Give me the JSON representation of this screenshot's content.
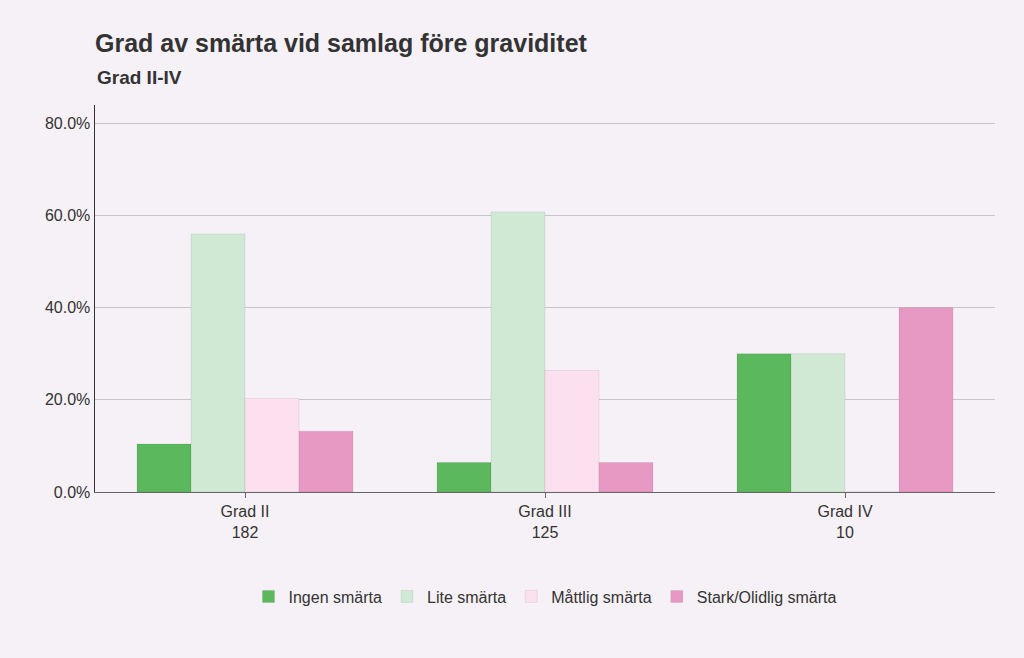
{
  "chart_data": {
    "type": "bar",
    "title": "Grad av smärta vid samlag före graviditet",
    "subtitle": "Grad II-IV",
    "categories": [
      "Grad II\n182",
      "Grad III\n125",
      "Grad IV\n10"
    ],
    "series": [
      {
        "name": "Ingen smärta",
        "color": "#5cb85c",
        "values": [
          10.4,
          6.4,
          30.0
        ]
      },
      {
        "name": "Lite smärta",
        "color": "#d0e9d4",
        "values": [
          56.0,
          60.8,
          30.0
        ]
      },
      {
        "name": "Måttlig smärta",
        "color": "#fde0ef",
        "values": [
          20.3,
          26.4,
          0
        ]
      },
      {
        "name": "Stark/Olidlig smärta",
        "color": "#e899c3",
        "values": [
          13.2,
          6.4,
          40.0
        ]
      }
    ],
    "ylim": [
      0,
      84
    ],
    "yticks": [
      {
        "value": 0,
        "label": "0.0%"
      },
      {
        "value": 20,
        "label": "20.0%"
      },
      {
        "value": 40,
        "label": "40.0%"
      },
      {
        "value": 60,
        "label": "60.0%"
      },
      {
        "value": 80,
        "label": "80.0%"
      }
    ],
    "grid": true,
    "legend": "bottom"
  }
}
